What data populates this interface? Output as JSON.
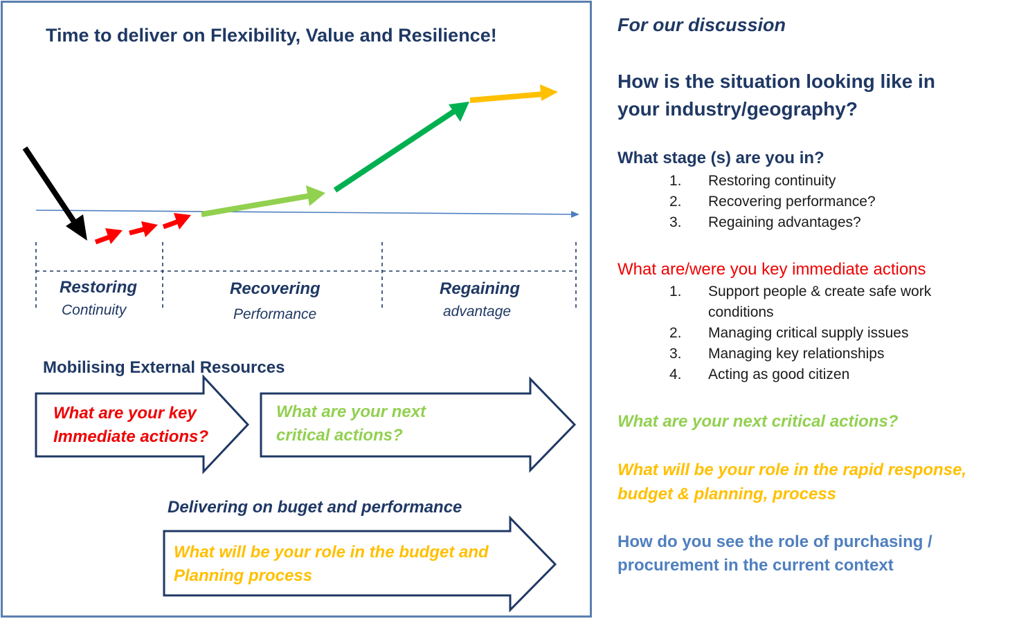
{
  "diagram": {
    "title": "Time to deliver on Flexibility, Value and Resilience!",
    "stages": [
      {
        "name": "Restoring",
        "subtitle": "Continuity"
      },
      {
        "name": "Recovering",
        "subtitle": "Performance"
      },
      {
        "name": "Regaining",
        "subtitle": "advantage"
      }
    ],
    "mobilising": {
      "title": "Mobilising External Resources",
      "arrow1_lines": [
        "What are your key",
        "Immediate actions?"
      ],
      "arrow2_lines": [
        "What are your next",
        "critical actions?"
      ]
    },
    "delivering": {
      "title": "Delivering on buget and performance",
      "arrow_lines": [
        "What will be your role in the budget and",
        "Planning process"
      ]
    },
    "colors": {
      "navy": "#1f3864",
      "decline": "#000000",
      "restoring": "#ff0000",
      "recovering": "#92d050",
      "regaining": "#00b050",
      "advantage": "#ffc000",
      "axis": "#4f7fbf"
    }
  },
  "discussion": {
    "intro": "For our discussion",
    "question_lines": [
      "How is the situation looking like in",
      "your industry/geography?"
    ],
    "stage_question": {
      "heading": "What stage (s) are you in?",
      "items": [
        "Restoring continuity",
        "Recovering performance?",
        "Regaining advantages?"
      ]
    },
    "immediate_actions": {
      "heading": "What are/were you key immediate actions",
      "items": [
        [
          "Support people & create safe work",
          "conditions"
        ],
        [
          "Managing critical supply issues"
        ],
        [
          "Managing key relationships"
        ],
        [
          "Acting as good citizen"
        ]
      ]
    },
    "next_actions": "What are your next critical actions?",
    "role_lines": [
      "What will be your role in the rapid response,",
      "budget & planning, process"
    ],
    "procurement_lines": [
      "How do you see the role of purchasing /",
      "procurement in the current context"
    ]
  }
}
